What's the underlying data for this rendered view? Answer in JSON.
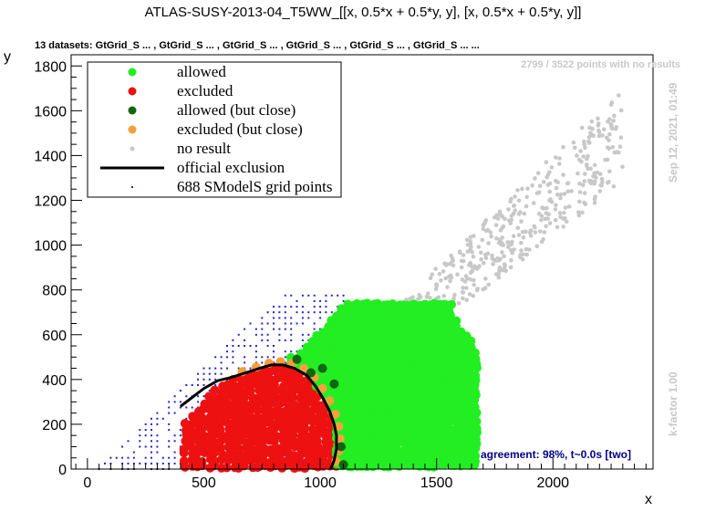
{
  "chart_data": {
    "type": "scatter",
    "title": "ATLAS-SUSY-2013-04_T5WW_[[x, 0.5*x + 0.5*y, y], [x, 0.5*x + 0.5*y, y]]",
    "subtitle": "13 datasets: GtGrid_S ... , GtGrid_S ... , GtGrid_S ... , GtGrid_S ... , GtGrid_S ... , GtGrid_S ... ...",
    "xlabel": "x",
    "ylabel": "y",
    "xlim": [
      -70,
      2430
    ],
    "ylim": [
      0,
      1850
    ],
    "x_ticks": [
      0,
      500,
      1000,
      1500,
      2000
    ],
    "y_ticks": [
      0,
      200,
      400,
      600,
      800,
      1000,
      1200,
      1400,
      1600,
      1800
    ],
    "grid": false,
    "legend_position": "top-left",
    "legend": [
      {
        "label": "allowed",
        "color": "#22ee22",
        "marker": "circle"
      },
      {
        "label": "excluded",
        "color": "#ee1111",
        "marker": "circle"
      },
      {
        "label": "allowed (but close)",
        "color": "#116611",
        "marker": "circle"
      },
      {
        "label": "excluded (but close)",
        "color": "#f5a03c",
        "marker": "circle"
      },
      {
        "label": "no result",
        "color": "#c8c8c8",
        "marker": "circle"
      },
      {
        "label": "official exclusion",
        "color": "#000000",
        "marker": "line"
      },
      {
        "label": "688 SModelS grid points",
        "color": "#2222cc",
        "marker": "dot"
      }
    ],
    "no_result_note": "2799 / 3522 points with no results",
    "date_note": "Sep 12, 2021, 01:49",
    "kfactor_note": "k-factor 1.00",
    "agreement_note": "agreement: 98%, t~0.0s [two]",
    "official_exclusion": {
      "x": [
        400,
        450,
        500,
        560,
        620,
        680,
        740,
        790,
        840,
        890,
        940,
        980,
        1010,
        1040,
        1060,
        1070,
        1070,
        1060,
        1045
      ],
      "y": [
        280,
        320,
        360,
        395,
        410,
        430,
        450,
        465,
        465,
        450,
        420,
        370,
        320,
        260,
        200,
        150,
        90,
        40,
        0
      ]
    },
    "regions": {
      "no_result": {
        "x_range": [
          700,
          2300
        ],
        "y_min": "0.8*(x-700)",
        "y_max": "x-600",
        "y_cap": 1700
      },
      "allowed": {
        "x_range": [
          680,
          1690
        ],
        "y_max": 740
      },
      "excluded": {
        "x_range": [
          280,
          1080
        ],
        "below": "official_exclusion"
      },
      "smodels_grid": {
        "x_range": [
          40,
          1100
        ],
        "y_max": "x-40"
      }
    },
    "point_colors": {
      "allowed": "#22ee22",
      "excluded": "#ee1111",
      "allowed_close": "#116611",
      "excluded_close": "#f5a03c",
      "no_result": "#c8c8c8",
      "grid": "#2222cc",
      "agreement_text": "#000088"
    }
  }
}
